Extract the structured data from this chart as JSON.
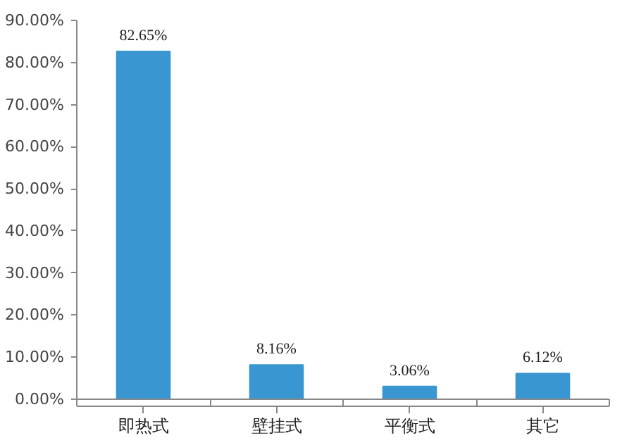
{
  "chart_data": {
    "type": "bar",
    "categories": [
      "即热式",
      "壁挂式",
      "平衡式",
      "其它"
    ],
    "values": [
      82.65,
      8.16,
      3.06,
      6.12
    ],
    "color": "#3a96d0",
    "value_labels": [
      "82.65%",
      "8.16%",
      "3.06%",
      "6.12%"
    ],
    "ylim": [
      0,
      90
    ],
    "yticks": [
      {
        "value": 0,
        "label": "0.00%"
      },
      {
        "value": 10,
        "label": "10.00%"
      },
      {
        "value": 20,
        "label": "20.00%"
      },
      {
        "value": 30,
        "label": "30.00%"
      },
      {
        "value": 40,
        "label": "40.00%"
      },
      {
        "value": 50,
        "label": "50.00%"
      },
      {
        "value": 60,
        "label": "60.00%"
      },
      {
        "value": 70,
        "label": "70.00%"
      },
      {
        "value": 80,
        "label": "80.00%"
      },
      {
        "value": 90,
        "label": "90.00%"
      }
    ],
    "grid": false
  }
}
